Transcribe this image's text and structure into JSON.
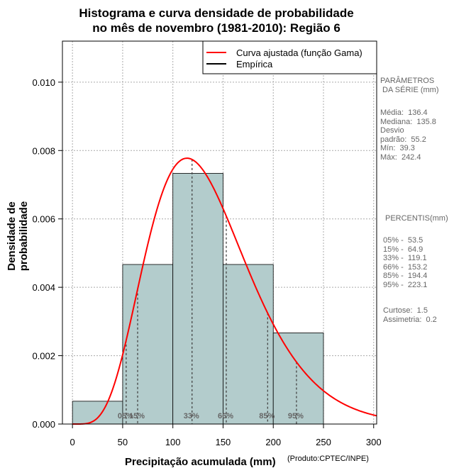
{
  "chart_data": {
    "type": "bar",
    "title": "Histograma e curva densidade de probabilidade",
    "subtitle": "no mês de novembro (1981-2010): Região 6",
    "xlabel": "Precipitação acumulada (mm)",
    "ylabel": "Densidade de probabilidade",
    "credit": "(Produto:CPTEC/INPE)",
    "xlim": [
      -10,
      303
    ],
    "ylim": [
      0,
      0.0112
    ],
    "xticks": [
      0,
      50,
      100,
      150,
      200,
      250,
      300
    ],
    "yticks": [
      0.0,
      0.002,
      0.004,
      0.006,
      0.008,
      0.01
    ],
    "ytick_labels": [
      "0.000",
      "0.002",
      "0.004",
      "0.006",
      "0.008",
      "0.010"
    ],
    "grid": true,
    "histogram": {
      "bin_edges": [
        0,
        50,
        100,
        150,
        200,
        250
      ],
      "densities": [
        0.000667,
        0.004667,
        0.007333,
        0.004667,
        0.002667
      ]
    },
    "gamma_curve": {
      "name": "Curva ajustada (função Gama)",
      "mean": 136.4,
      "sd": 55.2,
      "color": "#ff0000"
    },
    "legend": {
      "position": "top-right",
      "entries": [
        {
          "label": "Curva ajustada (função Gama)",
          "color": "#ff0000"
        },
        {
          "label": "Empírica",
          "color": "#000000"
        }
      ]
    },
    "percentiles": [
      {
        "label": "05%",
        "value": 53.5
      },
      {
        "label": "15%",
        "value": 64.9
      },
      {
        "label": "33%",
        "value": 119.1
      },
      {
        "label": "66%",
        "value": 153.2
      },
      {
        "label": "85%",
        "value": 194.4
      },
      {
        "label": "95%",
        "value": 223.1
      }
    ],
    "percentile_tags": [
      "05%",
      "15%",
      "33%",
      "66%",
      "85%",
      "95%"
    ]
  },
  "side_panel": {
    "params_title": "PARÂMETROS\n DA SÉRIE (mm)",
    "params_text": "Média:  136.4\nMediana:  135.8\nDesvio\npadrão:  55.2\nMín:  39.3\nMáx:  242.4",
    "percentis_title": "PERCENTIS(mm)",
    "percentis_text": "05% -  53.5\n15% -  64.9\n33% -  119.1\n66% -  153.2\n85% -  194.4\n95% -  223.1",
    "stats_text": "Curtose:  1.5\nAssimetria:  0.2"
  },
  "colors": {
    "bar_fill": "#b3cccc",
    "curve": "#ff0000",
    "grid": "#aaaaaa"
  }
}
